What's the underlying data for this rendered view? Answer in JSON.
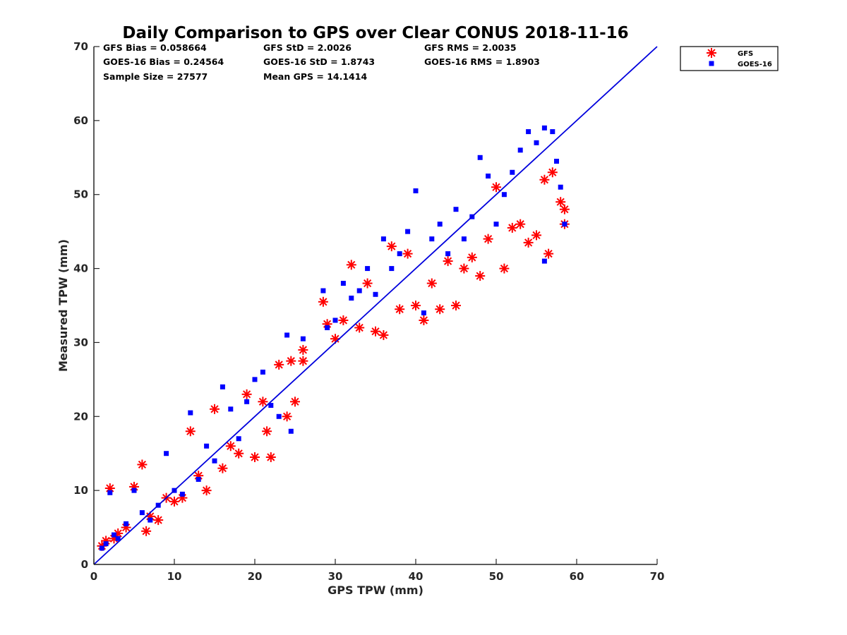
{
  "chart_data": {
    "type": "scatter",
    "title": "Daily Comparison to GPS over Clear CONUS 2018-11-16",
    "xlabel": "GPS TPW (mm)",
    "ylabel": "Measured TPW (mm)",
    "xlim": [
      0,
      70
    ],
    "ylim": [
      0,
      70
    ],
    "xticks": [
      "0",
      "10",
      "20",
      "30",
      "40",
      "50",
      "60",
      "70"
    ],
    "yticks": [
      "0",
      "10",
      "20",
      "30",
      "40",
      "50",
      "60",
      "70"
    ],
    "grid": false,
    "legend_position": "outside-top-right",
    "reference_line": {
      "name": "1:1 line",
      "from": [
        0,
        0
      ],
      "to": [
        70,
        70
      ],
      "color": "#0000dd"
    },
    "stats": [
      [
        "GFS Bias = 0.058664",
        "GFS StD = 2.0026",
        "GFS RMS = 2.0035"
      ],
      [
        "GOES-16 Bias = 0.24564",
        "GOES-16 StD = 1.8743",
        "GOES-16 RMS = 1.8903"
      ],
      [
        "Sample Size = 27577",
        "Mean GPS = 14.1414",
        ""
      ]
    ],
    "series": [
      {
        "name": "GFS",
        "marker": "asterisk",
        "color": "#ff0000",
        "points": [
          [
            1.0,
            2.5
          ],
          [
            1.5,
            3.2
          ],
          [
            2.0,
            10.3
          ],
          [
            2.5,
            3.5
          ],
          [
            3.0,
            4.2
          ],
          [
            4.0,
            5.0
          ],
          [
            5.0,
            10.5
          ],
          [
            6.0,
            13.5
          ],
          [
            6.5,
            4.5
          ],
          [
            7.0,
            6.5
          ],
          [
            8.0,
            6.0
          ],
          [
            9.0,
            9.0
          ],
          [
            10.0,
            8.5
          ],
          [
            11.0,
            9.0
          ],
          [
            12.0,
            18.0
          ],
          [
            13.0,
            12.0
          ],
          [
            14.0,
            10.0
          ],
          [
            15.0,
            21.0
          ],
          [
            16.0,
            13.0
          ],
          [
            17.0,
            16.0
          ],
          [
            18.0,
            15.0
          ],
          [
            19.0,
            23.0
          ],
          [
            20.0,
            14.5
          ],
          [
            21.0,
            22.0
          ],
          [
            21.5,
            18.0
          ],
          [
            22.0,
            14.5
          ],
          [
            23.0,
            27.0
          ],
          [
            24.0,
            20.0
          ],
          [
            25.0,
            22.0
          ],
          [
            24.5,
            27.5
          ],
          [
            26.0,
            27.5
          ],
          [
            26.0,
            29.0
          ],
          [
            28.5,
            35.5
          ],
          [
            29.0,
            32.5
          ],
          [
            30.0,
            30.5
          ],
          [
            31.0,
            33.0
          ],
          [
            32.0,
            40.5
          ],
          [
            33.0,
            32.0
          ],
          [
            34.0,
            38.0
          ],
          [
            35.0,
            31.5
          ],
          [
            36.0,
            31.0
          ],
          [
            37.0,
            43.0
          ],
          [
            38.0,
            34.5
          ],
          [
            39.0,
            42.0
          ],
          [
            40.0,
            35.0
          ],
          [
            41.0,
            33.0
          ],
          [
            42.0,
            38.0
          ],
          [
            43.0,
            34.5
          ],
          [
            44.0,
            41.0
          ],
          [
            45.0,
            35.0
          ],
          [
            46.0,
            40.0
          ],
          [
            47.0,
            41.5
          ],
          [
            48.0,
            39.0
          ],
          [
            49.0,
            44.0
          ],
          [
            50.0,
            51.0
          ],
          [
            51.0,
            40.0
          ],
          [
            52.0,
            45.5
          ],
          [
            53.0,
            46.0
          ],
          [
            54.0,
            43.5
          ],
          [
            55.0,
            44.5
          ],
          [
            56.0,
            52.0
          ],
          [
            56.5,
            42.0
          ],
          [
            57.0,
            53.0
          ],
          [
            58.0,
            49.0
          ],
          [
            58.5,
            48.0
          ],
          [
            58.5,
            46.0
          ]
        ]
      },
      {
        "name": "GOES-16",
        "marker": "square",
        "color": "#0000ff",
        "points": [
          [
            1.0,
            2.2
          ],
          [
            1.5,
            2.8
          ],
          [
            2.0,
            9.7
          ],
          [
            2.5,
            4.0
          ],
          [
            3.0,
            3.5
          ],
          [
            4.0,
            5.5
          ],
          [
            5.0,
            10.0
          ],
          [
            6.0,
            7.0
          ],
          [
            7.0,
            6.0
          ],
          [
            8.0,
            8.0
          ],
          [
            9.0,
            15.0
          ],
          [
            10.0,
            10.0
          ],
          [
            11.0,
            9.5
          ],
          [
            12.0,
            20.5
          ],
          [
            13.0,
            11.5
          ],
          [
            14.0,
            16.0
          ],
          [
            15.0,
            14.0
          ],
          [
            16.0,
            24.0
          ],
          [
            17.0,
            21.0
          ],
          [
            18.0,
            17.0
          ],
          [
            19.0,
            22.0
          ],
          [
            20.0,
            25.0
          ],
          [
            21.0,
            26.0
          ],
          [
            22.0,
            21.5
          ],
          [
            23.0,
            20.0
          ],
          [
            24.0,
            31.0
          ],
          [
            24.5,
            18.0
          ],
          [
            26.0,
            30.5
          ],
          [
            28.5,
            37.0
          ],
          [
            29.0,
            32.0
          ],
          [
            30.0,
            33.0
          ],
          [
            31.0,
            38.0
          ],
          [
            32.0,
            36.0
          ],
          [
            33.0,
            37.0
          ],
          [
            34.0,
            40.0
          ],
          [
            35.0,
            36.5
          ],
          [
            36.0,
            44.0
          ],
          [
            37.0,
            40.0
          ],
          [
            38.0,
            42.0
          ],
          [
            39.0,
            45.0
          ],
          [
            40.0,
            50.5
          ],
          [
            41.0,
            34.0
          ],
          [
            42.0,
            44.0
          ],
          [
            43.0,
            46.0
          ],
          [
            44.0,
            42.0
          ],
          [
            45.0,
            48.0
          ],
          [
            46.0,
            44.0
          ],
          [
            47.0,
            47.0
          ],
          [
            48.0,
            55.0
          ],
          [
            49.0,
            52.5
          ],
          [
            50.0,
            46.0
          ],
          [
            51.0,
            50.0
          ],
          [
            52.0,
            53.0
          ],
          [
            53.0,
            56.0
          ],
          [
            54.0,
            58.5
          ],
          [
            55.0,
            57.0
          ],
          [
            56.0,
            59.0
          ],
          [
            57.0,
            58.5
          ],
          [
            57.5,
            54.5
          ],
          [
            58.0,
            51.0
          ],
          [
            58.5,
            46.0
          ],
          [
            56.0,
            41.0
          ]
        ]
      }
    ]
  }
}
